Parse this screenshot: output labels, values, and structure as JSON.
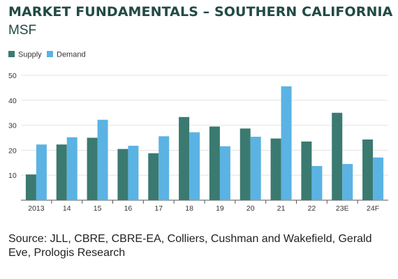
{
  "header": {
    "title": "MARKET FUNDAMENTALS – SOUTHERN CALIFORNIA",
    "subtitle": "MSF"
  },
  "colors": {
    "supply": "#3b7a70",
    "demand": "#5bb3e3",
    "grid": "#e3e3e3",
    "axis": "#555555",
    "text": "#333333"
  },
  "chart_data": {
    "type": "bar",
    "title": "",
    "xlabel": "",
    "ylabel": "",
    "ylim": [
      0,
      50
    ],
    "yticks": [
      10,
      20,
      30,
      40,
      50
    ],
    "grid": true,
    "legend_position": "top-left",
    "categories": [
      "2013",
      "14",
      "15",
      "16",
      "17",
      "18",
      "19",
      "20",
      "21",
      "22",
      "23E",
      "24F"
    ],
    "series": [
      {
        "name": "Supply",
        "values": [
          10.3,
          22.3,
          25.0,
          20.5,
          18.8,
          33.3,
          29.5,
          28.7,
          24.7,
          23.5,
          35.0,
          24.3
        ]
      },
      {
        "name": "Demand",
        "values": [
          22.3,
          25.2,
          32.2,
          21.8,
          25.6,
          27.2,
          21.6,
          25.4,
          45.6,
          13.7,
          14.5,
          17.1
        ]
      }
    ]
  },
  "footer": {
    "source": "Source: JLL, CBRE, CBRE-EA, Colliers, Cushman and Wakefield, Gerald Eve, Prologis Research"
  }
}
